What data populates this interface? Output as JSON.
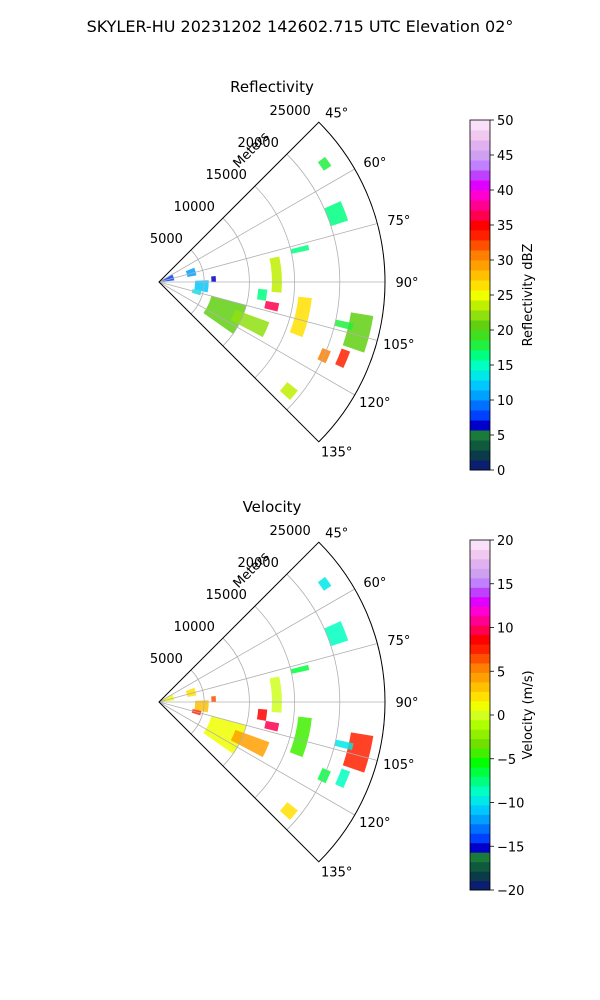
{
  "figure": {
    "suptitle": "SKYLER-HU  20231202  142602.715 UTC Elevation 02°"
  },
  "chart_data": [
    {
      "type": "polar-sector",
      "title": "Reflectivity",
      "radial_axis_label": "Meters",
      "radial_ticks": [
        5000,
        10000,
        15000,
        20000,
        25000
      ],
      "radial_tick_labels": [
        "5000",
        "10000",
        "15000",
        "20000",
        "25000"
      ],
      "rmax": 25000,
      "azimuth_range_deg": [
        45,
        135
      ],
      "azimuth_ticks": [
        45,
        60,
        75,
        90,
        105,
        120,
        135
      ],
      "azimuth_tick_labels": [
        "45°",
        "60°",
        "75°",
        "90°",
        "105°",
        "120°",
        "135°"
      ],
      "grid": true,
      "colorbar": {
        "label": "Reflectivity dBZ",
        "range": [
          0,
          50
        ],
        "ticks": [
          0,
          5,
          10,
          15,
          20,
          25,
          30,
          35,
          40,
          45,
          50
        ],
        "tick_labels": [
          "0",
          "5",
          "10",
          "15",
          "20",
          "25",
          "30",
          "35",
          "40",
          "45",
          "50"
        ],
        "colors": [
          "#0b1f6e",
          "#0b3b4a",
          "#0f5a3c",
          "#1a7a3a",
          "#0000c8",
          "#0040ff",
          "#0070ff",
          "#00a0ff",
          "#00c8ff",
          "#00e8e8",
          "#00ffc0",
          "#00ff80",
          "#20f040",
          "#40e020",
          "#60d010",
          "#90e010",
          "#c0f000",
          "#f0ff00",
          "#ffe000",
          "#ffc000",
          "#ffa000",
          "#ff8000",
          "#ff5000",
          "#ff2000",
          "#ff0000",
          "#ff0050",
          "#ff0090",
          "#ff00d0",
          "#e000ff",
          "#c040ff",
          "#c080ff",
          "#d0a0f0",
          "#e0b0f0",
          "#f0c8f0",
          "#f8e0f8"
        ]
      },
      "echo_segments": [
        {
          "az": [
            78,
            95
          ],
          "r": [
            12500,
            13600
          ],
          "value": 24
        },
        {
          "az": [
            96,
            111
          ],
          "r": [
            15500,
            17000
          ],
          "value": 26
        },
        {
          "az": [
            99,
            109
          ],
          "r": [
            21500,
            24000
          ],
          "value": 20
        },
        {
          "az": [
            110,
            115
          ],
          "r": [
            21500,
            22500
          ],
          "value": 34
        },
        {
          "az": [
            112,
            116
          ],
          "r": [
            19500,
            20500
          ],
          "value": 30
        },
        {
          "az": [
            102,
            104
          ],
          "r": [
            20000,
            22000
          ],
          "value": 18
        },
        {
          "az": [
            66,
            72
          ],
          "r": [
            20000,
            22000
          ],
          "value": 16
        },
        {
          "az": [
            53,
            56
          ],
          "r": [
            22000,
            23000
          ],
          "value": 18
        },
        {
          "az": [
            128,
            132
          ],
          "r": [
            18000,
            19500
          ],
          "value": 24
        },
        {
          "az": [
            60,
            84
          ],
          "r": [
            0,
            1700
          ],
          "value": 8
        },
        {
          "az": [
            68,
            80
          ],
          "r": [
            3200,
            4200
          ],
          "value": 11
        },
        {
          "az": [
            88,
            102
          ],
          "r": [
            4000,
            5500
          ],
          "value": 12
        },
        {
          "az": [
            102,
            108
          ],
          "r": [
            3800,
            4800
          ],
          "value": 14
        },
        {
          "az": [
            105,
            125
          ],
          "r": [
            6000,
            10000
          ],
          "value": 20
        },
        {
          "az": [
            110,
            118
          ],
          "r": [
            9000,
            13000
          ],
          "value": 22
        },
        {
          "az": [
            84,
            90
          ],
          "r": [
            5800,
            6300
          ],
          "value": 7
        },
        {
          "az": [
            94,
            100
          ],
          "r": [
            11000,
            12000
          ],
          "value": 16
        },
        {
          "az": [
            76,
            78
          ],
          "r": [
            15000,
            17000
          ],
          "value": 16
        },
        {
          "az": [
            100,
            104
          ],
          "r": [
            12000,
            13500
          ],
          "value": 36
        }
      ]
    },
    {
      "type": "polar-sector",
      "title": "Velocity",
      "radial_axis_label": "Meters",
      "radial_ticks": [
        5000,
        10000,
        15000,
        20000,
        25000
      ],
      "radial_tick_labels": [
        "5000",
        "10000",
        "15000",
        "20000",
        "25000"
      ],
      "rmax": 25000,
      "azimuth_range_deg": [
        45,
        135
      ],
      "azimuth_ticks": [
        45,
        60,
        75,
        90,
        105,
        120,
        135
      ],
      "azimuth_tick_labels": [
        "45°",
        "60°",
        "75°",
        "90°",
        "105°",
        "120°",
        "135°"
      ],
      "grid": true,
      "colorbar": {
        "label": "Velocity (m/s)",
        "range": [
          -20,
          20
        ],
        "ticks": [
          -20,
          -15,
          -10,
          -5,
          0,
          5,
          10,
          15,
          20
        ],
        "tick_labels": [
          "−20",
          "−15",
          "−10",
          "−5",
          "0",
          "5",
          "10",
          "15",
          "20"
        ],
        "colors": [
          "#0b1f6e",
          "#0b3b4a",
          "#0f5a3c",
          "#1a7a3a",
          "#0000c8",
          "#0040ff",
          "#0070ff",
          "#00a0ff",
          "#00c8ff",
          "#00e8e8",
          "#00ffc0",
          "#00ff80",
          "#00ff40",
          "#00ff00",
          "#40f000",
          "#70e000",
          "#90f000",
          "#b0ff00",
          "#d0ff20",
          "#f0ff00",
          "#ffe000",
          "#ffc000",
          "#ffa000",
          "#ff8000",
          "#ff5000",
          "#ff2000",
          "#ff0000",
          "#ff0050",
          "#ff0090",
          "#ff00d0",
          "#e000ff",
          "#c040ff",
          "#c080ff",
          "#d0a0f0",
          "#e0b0f0",
          "#f0c8f0",
          "#f8e0f8"
        ]
      },
      "echo_segments": [
        {
          "az": [
            78,
            95
          ],
          "r": [
            12500,
            13600
          ],
          "value": 0
        },
        {
          "az": [
            96,
            111
          ],
          "r": [
            15500,
            17000
          ],
          "value": -4
        },
        {
          "az": [
            99,
            109
          ],
          "r": [
            21500,
            24000
          ],
          "value": 8
        },
        {
          "az": [
            110,
            115
          ],
          "r": [
            21500,
            22500
          ],
          "value": -9
        },
        {
          "az": [
            112,
            116
          ],
          "r": [
            19500,
            20500
          ],
          "value": -6
        },
        {
          "az": [
            102,
            104
          ],
          "r": [
            20000,
            22000
          ],
          "value": -10
        },
        {
          "az": [
            66,
            72
          ],
          "r": [
            20000,
            22000
          ],
          "value": -9
        },
        {
          "az": [
            53,
            56
          ],
          "r": [
            22000,
            23000
          ],
          "value": -10
        },
        {
          "az": [
            128,
            132
          ],
          "r": [
            18000,
            19500
          ],
          "value": 2
        },
        {
          "az": [
            60,
            84
          ],
          "r": [
            0,
            1700
          ],
          "value": 1
        },
        {
          "az": [
            68,
            80
          ],
          "r": [
            3200,
            4200
          ],
          "value": 2
        },
        {
          "az": [
            88,
            102
          ],
          "r": [
            4000,
            5500
          ],
          "value": 3
        },
        {
          "az": [
            102,
            108
          ],
          "r": [
            3800,
            4800
          ],
          "value": 8
        },
        {
          "az": [
            105,
            125
          ],
          "r": [
            6000,
            10000
          ],
          "value": 1
        },
        {
          "az": [
            110,
            118
          ],
          "r": [
            9000,
            13000
          ],
          "value": 4
        },
        {
          "az": [
            84,
            90
          ],
          "r": [
            5800,
            6300
          ],
          "value": 6
        },
        {
          "az": [
            94,
            100
          ],
          "r": [
            11000,
            12000
          ],
          "value": 9
        },
        {
          "az": [
            76,
            78
          ],
          "r": [
            15000,
            17000
          ],
          "value": -6
        },
        {
          "az": [
            100,
            104
          ],
          "r": [
            12000,
            13500
          ],
          "value": 10
        }
      ]
    }
  ]
}
